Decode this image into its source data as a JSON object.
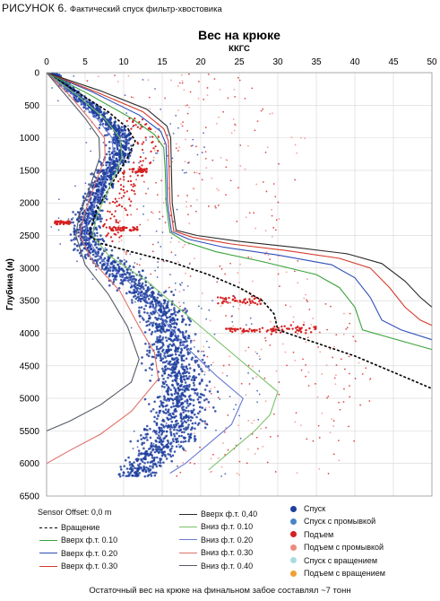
{
  "figure": {
    "number": "РИСУНОК 6.",
    "caption": "Фактический спуск фильтр-хвостовика",
    "footer": "Остаточный вес на крюке на финальном забое составлял ~7 тонн",
    "sensor_offset": "Sensor Offset: 0,0 m"
  },
  "legend_lines_left": [
    {
      "label": "Вращение",
      "color": "#000000",
      "dash": true
    },
    {
      "label": "Вверх ф.т. 0.10",
      "color": "#3aa23a",
      "dash": false
    },
    {
      "label": "Вверх ф.т. 0.20",
      "color": "#2f4fb8",
      "dash": false
    },
    {
      "label": "Вверх ф.т. 0.30",
      "color": "#d43a2a",
      "dash": false
    }
  ],
  "legend_lines_mid": [
    {
      "label": "Вверх ф.т. 0,40",
      "color": "#2a2a2a",
      "dash": false
    },
    {
      "label": "Вниз ф.т. 0.10",
      "color": "#7bc26a",
      "dash": false
    },
    {
      "label": "Вниз ф.т. 0.20",
      "color": "#6a7ad6",
      "dash": false
    },
    {
      "label": "Вниз ф.т. 0.30",
      "color": "#e0706a",
      "dash": false
    },
    {
      "label": "Вниз ф.т. 0.40",
      "color": "#555a66",
      "dash": false
    }
  ],
  "legend_points": [
    {
      "label": "Спуск",
      "color": "#1f3f9f"
    },
    {
      "label": "Спуск с промывкой",
      "color": "#4a86c6"
    },
    {
      "label": "Подъем",
      "color": "#d62020"
    },
    {
      "label": "Подъем с промывкой",
      "color": "#f08a80"
    },
    {
      "label": "Спуск с вращением",
      "color": "#a8dde0"
    },
    {
      "label": "Подъем с вращением",
      "color": "#f0a030"
    }
  ],
  "chart_data": {
    "type": "scatter",
    "title": "Вес на крюке",
    "xlabel": "ККГС",
    "ylabel": "Глубина (м)",
    "xlim": [
      0,
      50
    ],
    "ylim": [
      0,
      6500
    ],
    "y_inverted": true,
    "x_axis_position": "top",
    "xticks": [
      0,
      5,
      10,
      15,
      20,
      25,
      30,
      35,
      40,
      45,
      50
    ],
    "yticks": [
      0,
      500,
      1000,
      1500,
      2000,
      2500,
      3000,
      3500,
      4000,
      4500,
      5000,
      5500,
      6000,
      6500
    ],
    "grid": true,
    "series": [
      {
        "name": "Вращение",
        "style": "dashed",
        "color": "#000000",
        "points": [
          [
            0,
            0
          ],
          [
            4,
            300
          ],
          [
            8,
            600
          ],
          [
            10.5,
            850
          ],
          [
            11.5,
            1050
          ],
          [
            10.5,
            1300
          ],
          [
            8.5,
            1700
          ],
          [
            6.5,
            2100
          ],
          [
            5.5,
            2500
          ],
          [
            7,
            2620
          ],
          [
            11,
            2750
          ],
          [
            16,
            2900
          ],
          [
            21,
            3100
          ],
          [
            25,
            3300
          ],
          [
            28,
            3500
          ],
          [
            29.5,
            3700
          ],
          [
            30,
            3950
          ],
          [
            35,
            4150
          ],
          [
            40,
            4350
          ],
          [
            45,
            4600
          ],
          [
            50,
            4850
          ]
        ]
      },
      {
        "name": "Вверх ф.т. 0.10",
        "style": "solid",
        "color": "#3aa23a",
        "points": [
          [
            0,
            0
          ],
          [
            5,
            300
          ],
          [
            11,
            700
          ],
          [
            14,
            950
          ],
          [
            15.2,
            1150
          ],
          [
            15.4,
            1500
          ],
          [
            15.5,
            2000
          ],
          [
            16,
            2450
          ],
          [
            18,
            2600
          ],
          [
            22,
            2750
          ],
          [
            28,
            2900
          ],
          [
            35,
            3100
          ],
          [
            38,
            3300
          ],
          [
            40,
            3600
          ],
          [
            41,
            3950
          ],
          [
            44,
            4050
          ],
          [
            47,
            4150
          ],
          [
            50,
            4250
          ]
        ]
      },
      {
        "name": "Вверх ф.т. 0.20",
        "style": "solid",
        "color": "#2f4fb8",
        "points": [
          [
            0,
            0
          ],
          [
            6,
            300
          ],
          [
            12,
            650
          ],
          [
            14.8,
            900
          ],
          [
            15.5,
            1100
          ],
          [
            15.6,
            1500
          ],
          [
            15.7,
            2000
          ],
          [
            16.2,
            2440
          ],
          [
            18.5,
            2560
          ],
          [
            23,
            2680
          ],
          [
            30,
            2800
          ],
          [
            37,
            2950
          ],
          [
            40,
            3150
          ],
          [
            42,
            3450
          ],
          [
            43.5,
            3800
          ],
          [
            46,
            3950
          ],
          [
            50,
            4100
          ]
        ]
      },
      {
        "name": "Вверх ф.т. 0.30",
        "style": "solid",
        "color": "#d43a2a",
        "points": [
          [
            0,
            0
          ],
          [
            6.5,
            300
          ],
          [
            12.5,
            600
          ],
          [
            15.2,
            860
          ],
          [
            15.8,
            1050
          ],
          [
            15.9,
            1500
          ],
          [
            16,
            2000
          ],
          [
            16.5,
            2430
          ],
          [
            19,
            2530
          ],
          [
            24,
            2630
          ],
          [
            31,
            2730
          ],
          [
            38,
            2850
          ],
          [
            42,
            3000
          ],
          [
            44.5,
            3300
          ],
          [
            46.5,
            3600
          ],
          [
            48.5,
            3800
          ],
          [
            50,
            3880
          ]
        ]
      },
      {
        "name": "Вверх ф.т. 0,40",
        "style": "solid",
        "color": "#2a2a2a",
        "points": [
          [
            0,
            0
          ],
          [
            7,
            280
          ],
          [
            13,
            560
          ],
          [
            15.6,
            820
          ],
          [
            16.1,
            1000
          ],
          [
            16.2,
            1500
          ],
          [
            16.3,
            2000
          ],
          [
            16.8,
            2420
          ],
          [
            19.5,
            2500
          ],
          [
            25,
            2590
          ],
          [
            32,
            2680
          ],
          [
            39,
            2780
          ],
          [
            43.5,
            2930
          ],
          [
            46.5,
            3200
          ],
          [
            48.5,
            3450
          ],
          [
            50,
            3600
          ]
        ]
      },
      {
        "name": "Вниз ф.т. 0.10",
        "style": "solid",
        "color": "#7bc26a",
        "points": [
          [
            0,
            0
          ],
          [
            4,
            350
          ],
          [
            7.5,
            700
          ],
          [
            9.5,
            1000
          ],
          [
            9.8,
            1300
          ],
          [
            8,
            1800
          ],
          [
            6.5,
            2200
          ],
          [
            6,
            2500
          ],
          [
            8,
            2800
          ],
          [
            13,
            3200
          ],
          [
            17,
            3600
          ],
          [
            21,
            4000
          ],
          [
            26,
            4500
          ],
          [
            30,
            4900
          ],
          [
            29,
            5250
          ],
          [
            27,
            5500
          ],
          [
            24,
            5800
          ],
          [
            21,
            6100
          ]
        ]
      },
      {
        "name": "Вниз ф.т. 0.20",
        "style": "solid",
        "color": "#6a7ad6",
        "points": [
          [
            0,
            0
          ],
          [
            3.5,
            350
          ],
          [
            6.5,
            700
          ],
          [
            8.5,
            1000
          ],
          [
            8.7,
            1300
          ],
          [
            7,
            1800
          ],
          [
            5.5,
            2200
          ],
          [
            5,
            2500
          ],
          [
            7,
            2850
          ],
          [
            11,
            3250
          ],
          [
            14.5,
            3700
          ],
          [
            18,
            4200
          ],
          [
            22,
            4650
          ],
          [
            25.5,
            5000
          ],
          [
            24,
            5400
          ],
          [
            21,
            5700
          ],
          [
            18,
            6000
          ],
          [
            16,
            6150
          ]
        ]
      },
      {
        "name": "Вниз ф.т. 0.30",
        "style": "solid",
        "color": "#e0706a",
        "points": [
          [
            0,
            0
          ],
          [
            3,
            350
          ],
          [
            5.5,
            700
          ],
          [
            7.5,
            1000
          ],
          [
            7.6,
            1300
          ],
          [
            6,
            1800
          ],
          [
            4.8,
            2200
          ],
          [
            4.3,
            2500
          ],
          [
            6,
            2900
          ],
          [
            9.5,
            3350
          ],
          [
            12,
            3900
          ],
          [
            14,
            4300
          ],
          [
            14.5,
            4700
          ],
          [
            11,
            5200
          ],
          [
            7,
            5550
          ],
          [
            3,
            5800
          ],
          [
            0,
            6000
          ]
        ]
      },
      {
        "name": "Вниз ф.т. 0.40",
        "style": "solid",
        "color": "#555a66",
        "points": [
          [
            0,
            0
          ],
          [
            2.5,
            350
          ],
          [
            5,
            700
          ],
          [
            6.8,
            1000
          ],
          [
            6.9,
            1300
          ],
          [
            5.5,
            1800
          ],
          [
            4.2,
            2200
          ],
          [
            3.8,
            2500
          ],
          [
            5,
            2950
          ],
          [
            8,
            3400
          ],
          [
            10.5,
            3900
          ],
          [
            12,
            4400
          ],
          [
            11,
            4750
          ],
          [
            7,
            5100
          ],
          [
            3,
            5350
          ],
          [
            0,
            5500
          ]
        ]
      }
    ],
    "clouds": [
      {
        "name": "Спуск",
        "color": "#1f3f9f",
        "spine": [
          [
            0.8,
            0
          ],
          [
            3,
            250
          ],
          [
            6.5,
            600
          ],
          [
            9.5,
            950
          ],
          [
            9.8,
            1200
          ],
          [
            7.5,
            1600
          ],
          [
            6,
            2000
          ],
          [
            5,
            2400
          ],
          [
            5.8,
            2700
          ],
          [
            9,
            3000
          ],
          [
            13.5,
            3450
          ],
          [
            15.5,
            3800
          ],
          [
            16,
            4000
          ],
          [
            16.5,
            4400
          ],
          [
            17.5,
            4800
          ],
          [
            17,
            5300
          ],
          [
            15,
            5700
          ],
          [
            13,
            6000
          ],
          [
            12,
            6200
          ]
        ],
        "spread": [
          0.4,
          0.6,
          1.0,
          1.2,
          1.3,
          1.3,
          1.3,
          1.4,
          1.7,
          2.0,
          2.3,
          2.4,
          2.4,
          2.8,
          3.0,
          3.0,
          2.8,
          2.6,
          2.6
        ]
      }
    ],
    "red_clusters": [
      {
        "x": [
          11,
          13
        ],
        "y": [
          1500,
          1500
        ]
      },
      {
        "x": [
          1,
          3
        ],
        "y": [
          2300,
          2300
        ]
      },
      {
        "x": [
          8,
          12
        ],
        "y": [
          2400,
          2400
        ]
      },
      {
        "x": [
          22,
          28
        ],
        "y": [
          3450,
          3550
        ]
      },
      {
        "x": [
          23,
          30
        ],
        "y": [
          3950,
          3950
        ]
      },
      {
        "x": [
          29,
          35
        ],
        "y": [
          3900,
          4000
        ]
      }
    ]
  }
}
